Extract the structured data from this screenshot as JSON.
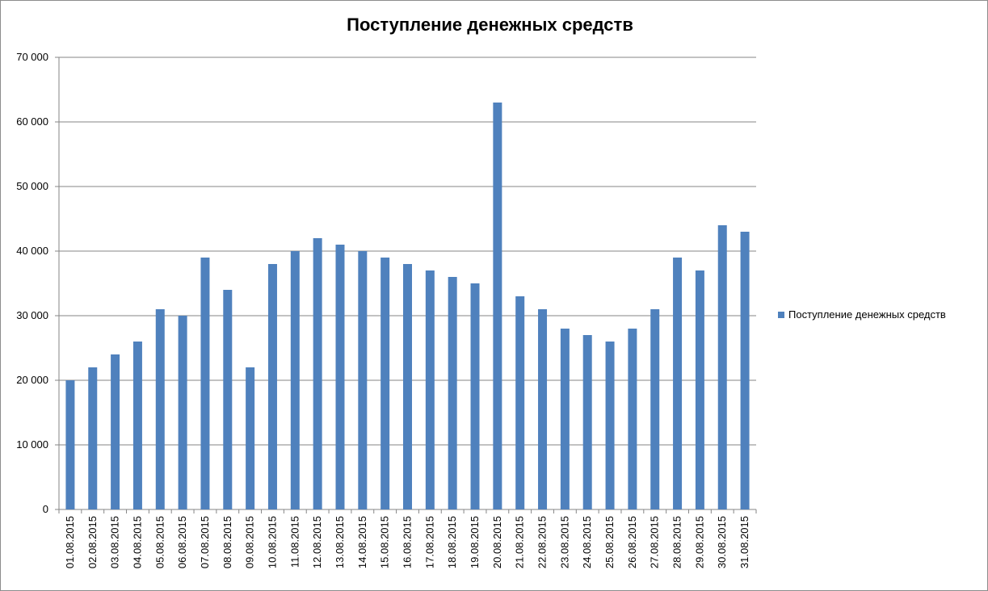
{
  "chart_data": {
    "type": "bar",
    "title": "Поступление денежных средств",
    "xlabel": "",
    "ylabel": "",
    "ylim": [
      0,
      70000
    ],
    "yticks": [
      0,
      10000,
      20000,
      30000,
      40000,
      50000,
      60000,
      70000
    ],
    "ytick_labels": [
      "0",
      "10 000",
      "20 000",
      "30 000",
      "40 000",
      "50 000",
      "60 000",
      "70 000"
    ],
    "grid": true,
    "legend_position": "right",
    "categories": [
      "01.08.2015",
      "02.08.2015",
      "03.08.2015",
      "04.08.2015",
      "05.08.2015",
      "06.08.2015",
      "07.08.2015",
      "08.08.2015",
      "09.08.2015",
      "10.08.2015",
      "11.08.2015",
      "12.08.2015",
      "13.08.2015",
      "14.08.2015",
      "15.08.2015",
      "16.08.2015",
      "17.08.2015",
      "18.08.2015",
      "19.08.2015",
      "20.08.2015",
      "21.08.2015",
      "22.08.2015",
      "23.08.2015",
      "24.08.2015",
      "25.08.2015",
      "26.08.2015",
      "27.08.2015",
      "28.08.2015",
      "29.08.2015",
      "30.08.2015",
      "31.08.2015"
    ],
    "series": [
      {
        "name": "Поступление денежных средств",
        "color": "#4f81bd",
        "values": [
          20000,
          22000,
          24000,
          26000,
          31000,
          30000,
          39000,
          34000,
          22000,
          38000,
          40000,
          42000,
          41000,
          40000,
          39000,
          38000,
          37000,
          36000,
          35000,
          63000,
          33000,
          31000,
          28000,
          27000,
          26000,
          28000,
          31000,
          39000,
          37000,
          44000,
          43000
        ]
      }
    ]
  }
}
